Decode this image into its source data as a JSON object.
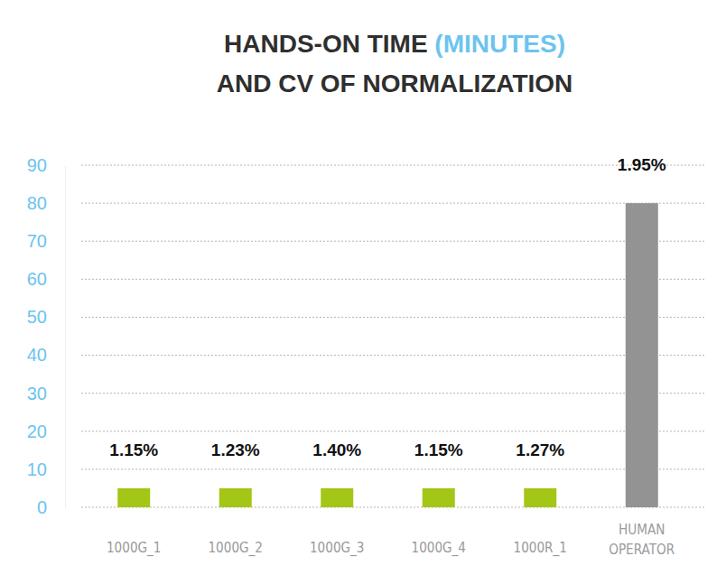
{
  "chart_data": {
    "type": "bar",
    "title": "HANDS-ON TIME (MINUTES)",
    "subtitle": "AND CV OF NORMALIZATION",
    "categories": [
      "1000G_1",
      "1000G_2",
      "1000G_3",
      "1000G_4",
      "1000R_1",
      "HUMAN OPERATOR"
    ],
    "values": [
      5,
      5,
      5,
      5,
      5,
      80
    ],
    "colors": [
      "#a3c617",
      "#a3c617",
      "#a3c617",
      "#a3c617",
      "#a3c617",
      "#939393"
    ],
    "cv_labels": [
      "1.15%",
      "1.23%",
      "1.40%",
      "1.15%",
      "1.27%",
      "1.95%"
    ],
    "ylim": [
      0,
      90
    ],
    "yticks": [
      0,
      10,
      20,
      30,
      40,
      50,
      60,
      70,
      80,
      90
    ],
    "grid": true
  }
}
